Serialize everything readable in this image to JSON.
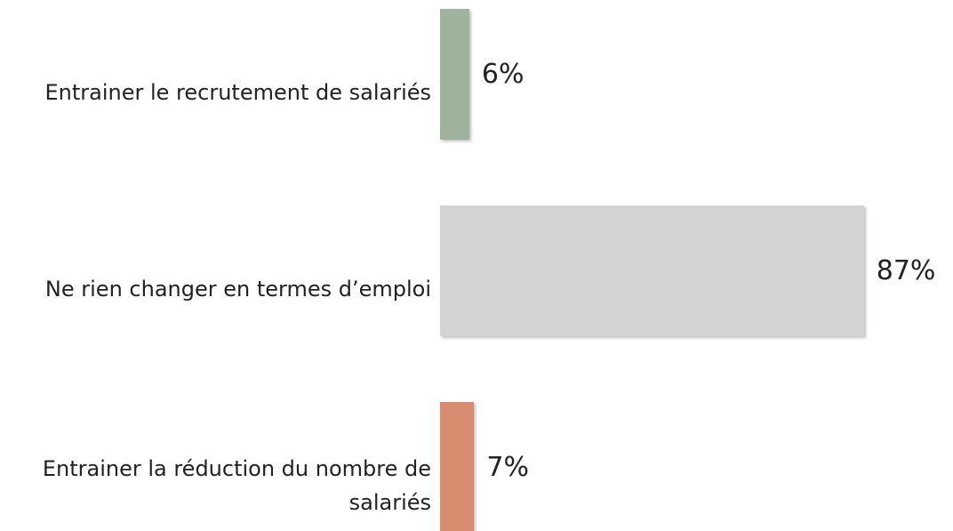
{
  "chart_data": {
    "type": "bar",
    "orientation": "horizontal",
    "categories": [
      "Entrainer le recrutement de salariés",
      "Ne rien changer en termes d’emploi",
      "Entrainer la réduction du nombre de salariés"
    ],
    "values": [
      6,
      87,
      7
    ],
    "value_labels": [
      "6%",
      "87%",
      "7%"
    ],
    "colors": [
      "#9db39b",
      "#d4d4d4",
      "#d98b70"
    ]
  }
}
